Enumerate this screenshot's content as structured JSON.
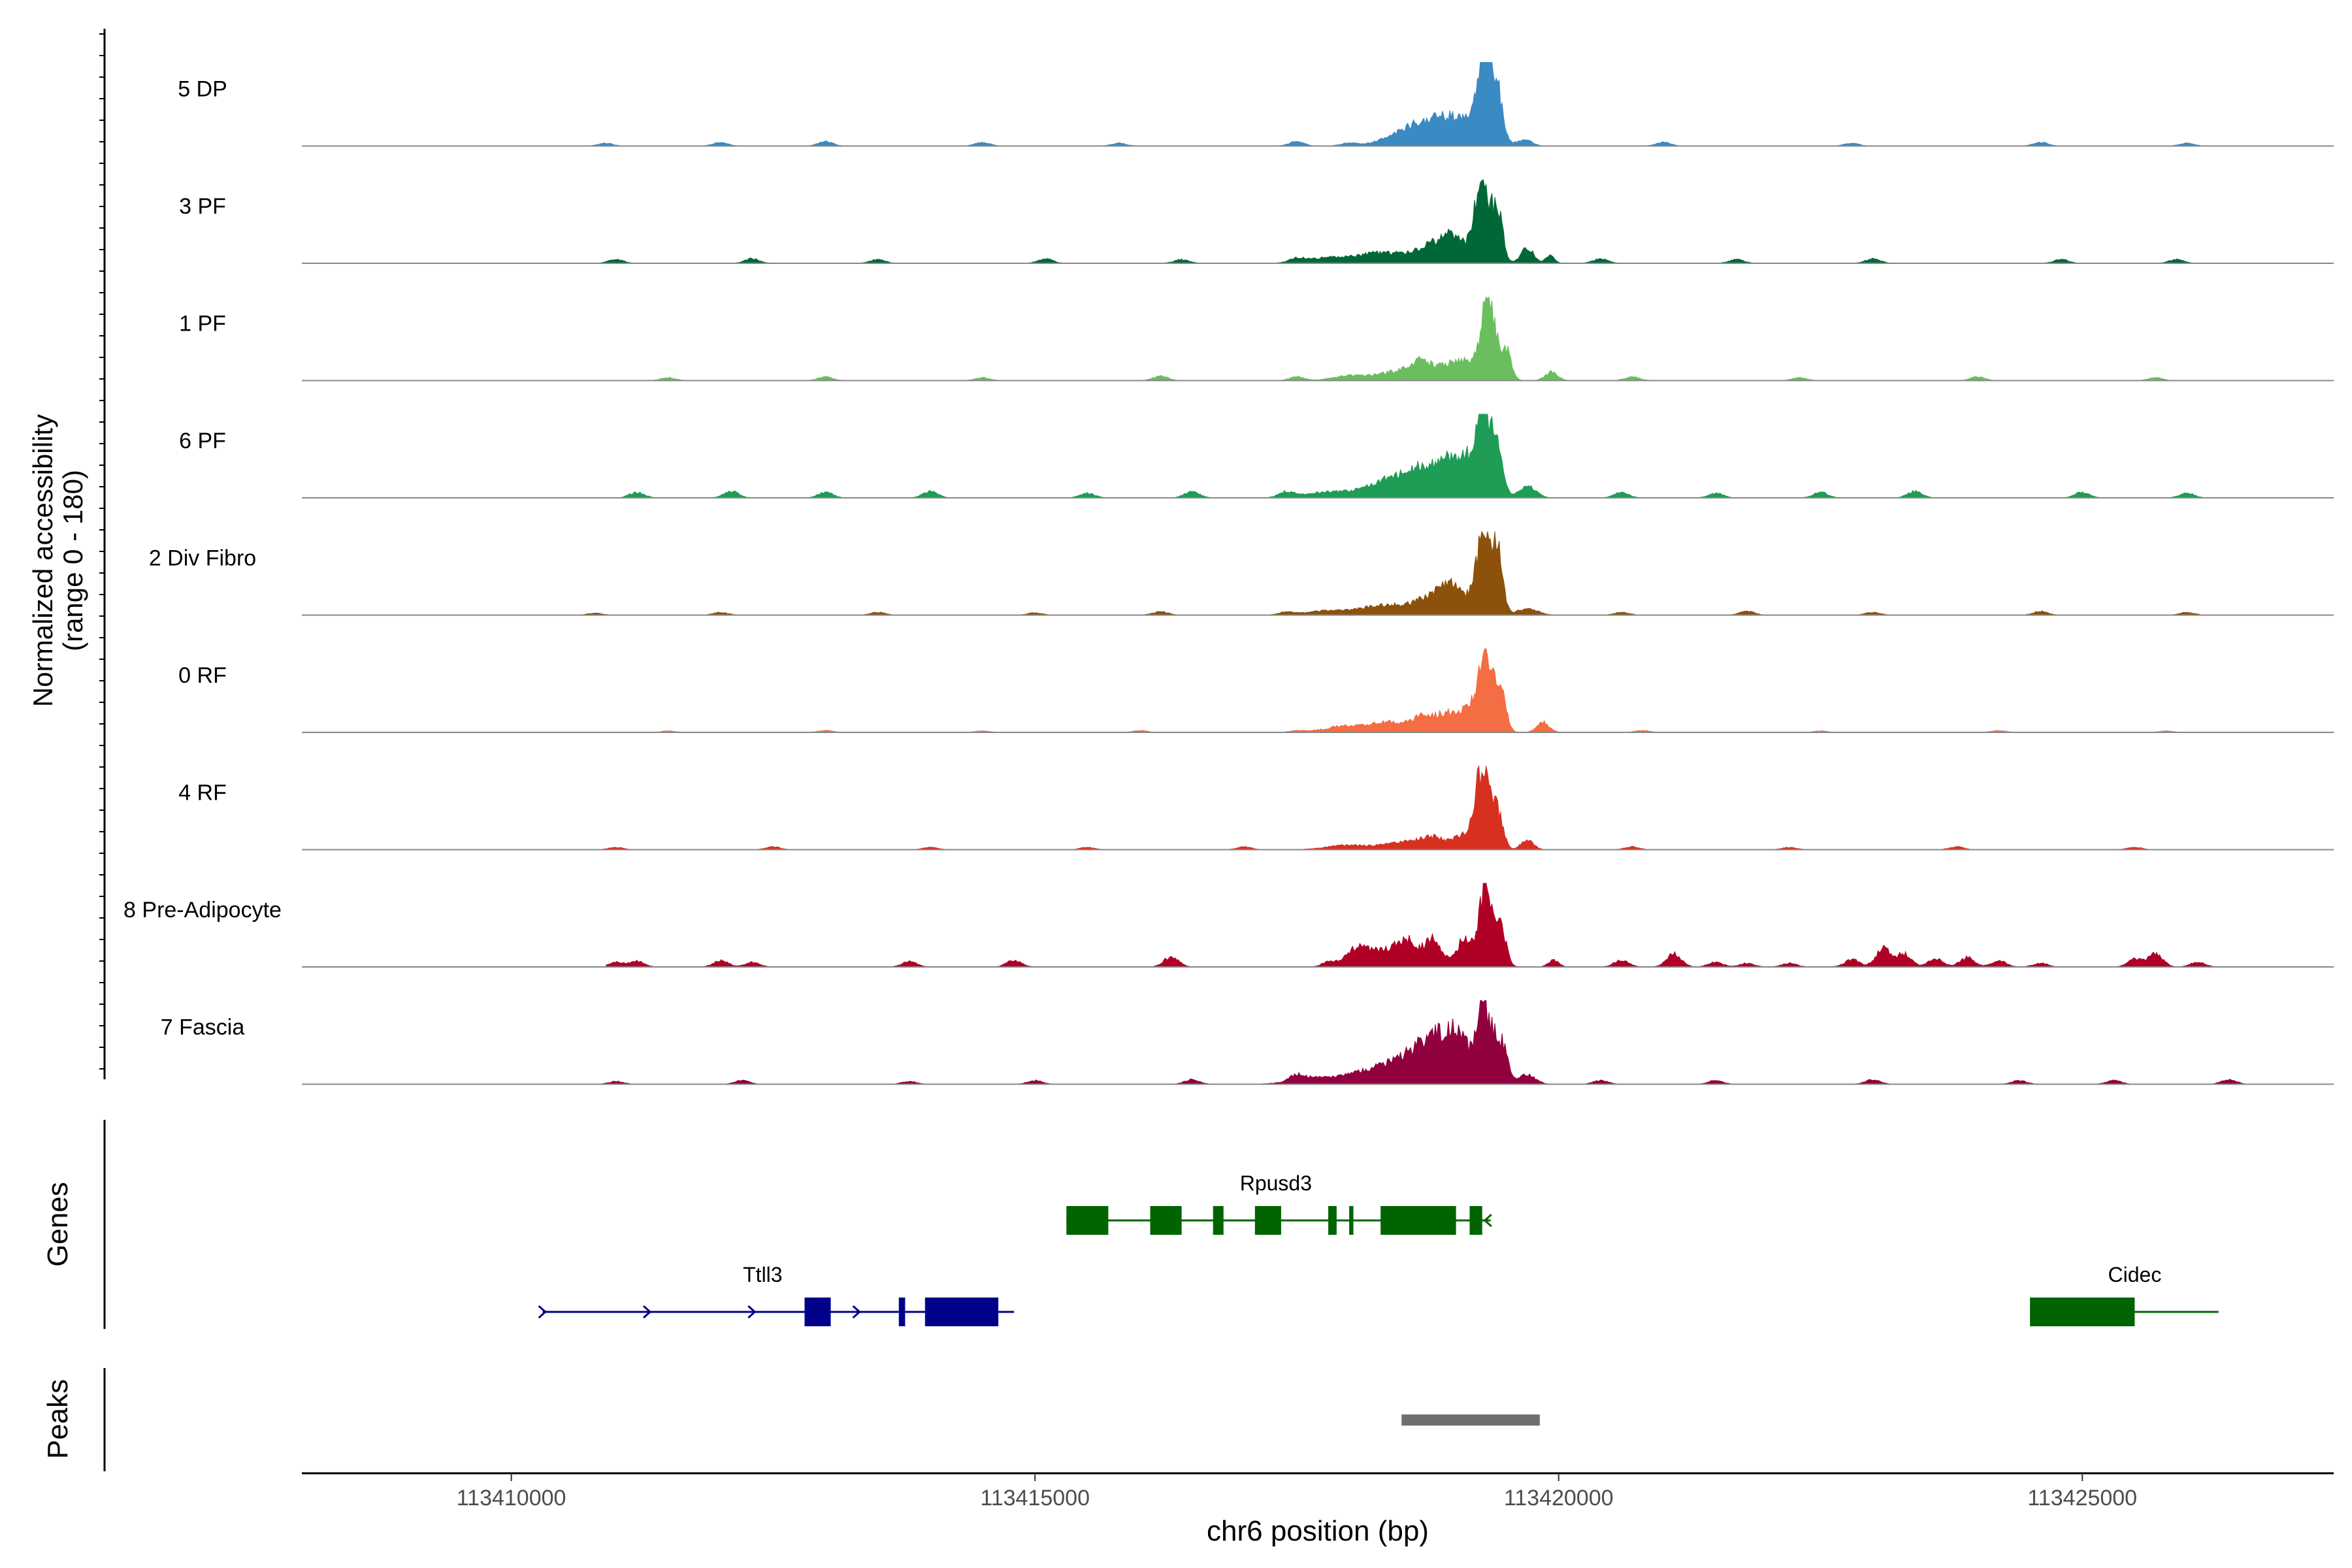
{
  "chart_data": {
    "type": "area",
    "subtype": "genome-coverage-track",
    "xlabel": "chr6 position (bp)",
    "ylabel_line1": "Normalized accessibility",
    "ylabel_line2": "(range 0 - 180)",
    "y_range": [
      0,
      180
    ],
    "x_range": [
      113408000,
      113427400
    ],
    "x_ticks": [
      {
        "value": 113410000,
        "label": "113410000"
      },
      {
        "value": 113415000,
        "label": "113415000"
      },
      {
        "value": 113420000,
        "label": "113420000"
      },
      {
        "value": 113425000,
        "label": "113425000"
      }
    ],
    "tracks": [
      {
        "name": "5 DP",
        "color": "#3a8ac3",
        "start": 113410300,
        "end": 113426600,
        "background": [
          [
            113410900,
            6
          ],
          [
            113412000,
            8
          ],
          [
            113413000,
            10
          ],
          [
            113414500,
            8
          ],
          [
            113415800,
            6
          ],
          [
            113417500,
            10
          ],
          [
            113419600,
            6
          ],
          [
            113421000,
            8
          ],
          [
            113422800,
            6
          ],
          [
            113424600,
            8
          ],
          [
            113426000,
            6
          ]
        ],
        "peaks": [
          [
            113418000,
            6,
            80
          ],
          [
            113418550,
            30,
            200
          ],
          [
            113418800,
            40,
            150
          ],
          [
            113419050,
            48,
            130
          ],
          [
            113419280,
            178,
            70
          ],
          [
            113419400,
            118,
            60
          ],
          [
            113419700,
            10,
            60
          ]
        ]
      },
      {
        "name": "3 PF",
        "color": "#006837",
        "start": 113410400,
        "end": 113426200,
        "background": [
          [
            113411000,
            8
          ],
          [
            113412300,
            10
          ],
          [
            113413500,
            8
          ],
          [
            113415100,
            10
          ],
          [
            113416400,
            8
          ],
          [
            113417500,
            8
          ],
          [
            113420400,
            10
          ],
          [
            113421700,
            8
          ],
          [
            113423000,
            10
          ],
          [
            113424800,
            8
          ],
          [
            113425900,
            8
          ]
        ],
        "peaks": [
          [
            113417800,
            12,
            200
          ],
          [
            113418300,
            22,
            200
          ],
          [
            113418800,
            35,
            180
          ],
          [
            113419000,
            40,
            120
          ],
          [
            113419270,
            180,
            70
          ],
          [
            113419420,
            100,
            50
          ],
          [
            113419700,
            32,
            60
          ],
          [
            113419920,
            18,
            40
          ]
        ]
      },
      {
        "name": "1 PF",
        "color": "#6abe5e",
        "start": 113410400,
        "end": 113426300,
        "background": [
          [
            113411500,
            6
          ],
          [
            113413000,
            8
          ],
          [
            113414500,
            6
          ],
          [
            113416200,
            10
          ],
          [
            113417500,
            8
          ],
          [
            113420700,
            8
          ],
          [
            113422300,
            6
          ],
          [
            113424000,
            8
          ],
          [
            113425700,
            6
          ]
        ],
        "peaks": [
          [
            113418000,
            10,
            160
          ],
          [
            113418500,
            22,
            200
          ],
          [
            113418700,
            30,
            90
          ],
          [
            113418900,
            22,
            80
          ],
          [
            113419100,
            42,
            110
          ],
          [
            113419330,
            172,
            70
          ],
          [
            113419500,
            60,
            50
          ],
          [
            113419930,
            18,
            60
          ]
        ]
      },
      {
        "name": "6 PF",
        "color": "#1f9c55",
        "start": 113410200,
        "end": 113426500,
        "background": [
          [
            113411200,
            12
          ],
          [
            113412100,
            14
          ],
          [
            113413000,
            12
          ],
          [
            113414000,
            14
          ],
          [
            113415500,
            10
          ],
          [
            113416500,
            14
          ],
          [
            113417400,
            12
          ],
          [
            113420600,
            12
          ],
          [
            113421500,
            10
          ],
          [
            113422500,
            12
          ],
          [
            113423400,
            14
          ],
          [
            113425000,
            12
          ],
          [
            113426000,
            10
          ]
        ],
        "peaks": [
          [
            113417800,
            12,
            220
          ],
          [
            113418300,
            22,
            200
          ],
          [
            113418600,
            40,
            200
          ],
          [
            113418900,
            50,
            200
          ],
          [
            113419080,
            55,
            120
          ],
          [
            113419280,
            178,
            70
          ],
          [
            113419420,
            105,
            50
          ],
          [
            113419700,
            25,
            80
          ]
        ]
      },
      {
        "name": "2 Div Fibro",
        "color": "#8c510a",
        "start": 113410200,
        "end": 113426500,
        "background": [
          [
            113410800,
            4
          ],
          [
            113412000,
            6
          ],
          [
            113413500,
            6
          ],
          [
            113415000,
            5
          ],
          [
            113416200,
            8
          ],
          [
            113417400,
            6
          ],
          [
            113420600,
            6
          ],
          [
            113421800,
            8
          ],
          [
            113423000,
            6
          ],
          [
            113424600,
            8
          ],
          [
            113426000,
            6
          ]
        ],
        "peaks": [
          [
            113417800,
            10,
            200
          ],
          [
            113418300,
            20,
            180
          ],
          [
            113418800,
            38,
            200
          ],
          [
            113419000,
            45,
            120
          ],
          [
            113419290,
            178,
            70
          ],
          [
            113419420,
            115,
            50
          ],
          [
            113419700,
            14,
            100
          ]
        ]
      },
      {
        "name": "0 RF",
        "color": "#f46d43",
        "start": 113410400,
        "end": 113426500,
        "background": [
          [
            113411500,
            3
          ],
          [
            113413000,
            4
          ],
          [
            113414500,
            3
          ],
          [
            113416000,
            4
          ],
          [
            113417500,
            3
          ],
          [
            113420800,
            4
          ],
          [
            113422500,
            3
          ],
          [
            113424200,
            4
          ],
          [
            113425800,
            3
          ]
        ],
        "peaks": [
          [
            113418000,
            14,
            220
          ],
          [
            113418400,
            20,
            150
          ],
          [
            113418700,
            32,
            100
          ],
          [
            113418900,
            26,
            90
          ],
          [
            113419100,
            45,
            120
          ],
          [
            113419300,
            175,
            70
          ],
          [
            113419450,
            80,
            50
          ],
          [
            113419850,
            22,
            60
          ]
        ]
      },
      {
        "name": "4 RF",
        "color": "#d7301f",
        "start": 113410300,
        "end": 113426500,
        "background": [
          [
            113411000,
            5
          ],
          [
            113412500,
            6
          ],
          [
            113414000,
            5
          ],
          [
            113415500,
            5
          ],
          [
            113417000,
            6
          ],
          [
            113420700,
            6
          ],
          [
            113422200,
            5
          ],
          [
            113423800,
            6
          ],
          [
            113425500,
            5
          ]
        ],
        "peaks": [
          [
            113418000,
            10,
            200
          ],
          [
            113418500,
            16,
            160
          ],
          [
            113418800,
            25,
            120
          ],
          [
            113419080,
            28,
            90
          ],
          [
            113419270,
            170,
            70
          ],
          [
            113419420,
            75,
            50
          ],
          [
            113419700,
            20,
            60
          ]
        ]
      },
      {
        "name": "8 Pre-Adipocyte",
        "color": "#b10026",
        "start": 113410900,
        "end": 113426300,
        "background": [
          [
            113411000,
            10
          ],
          [
            113411200,
            12
          ],
          [
            113412000,
            14
          ],
          [
            113412300,
            10
          ],
          [
            113413800,
            12
          ],
          [
            113414800,
            14
          ],
          [
            113416300,
            22
          ],
          [
            113418100,
            10
          ],
          [
            113420600,
            14
          ],
          [
            113421100,
            28
          ],
          [
            113421500,
            10
          ],
          [
            113421800,
            8
          ],
          [
            113422200,
            8
          ],
          [
            113422800,
            16
          ],
          [
            113423100,
            40
          ],
          [
            113423300,
            28
          ],
          [
            113423600,
            18
          ],
          [
            113423900,
            20
          ],
          [
            113424200,
            14
          ],
          [
            113424600,
            8
          ],
          [
            113425500,
            16
          ],
          [
            113425700,
            28
          ],
          [
            113426100,
            10
          ]
        ],
        "peaks": [
          [
            113417800,
            10,
            60
          ],
          [
            113418100,
            35,
            130
          ],
          [
            113418350,
            30,
            100
          ],
          [
            113418550,
            55,
            90
          ],
          [
            113418800,
            58,
            90
          ],
          [
            113419100,
            60,
            70
          ],
          [
            113419300,
            175,
            60
          ],
          [
            113419450,
            80,
            50
          ],
          [
            113419950,
            14,
            50
          ]
        ]
      },
      {
        "name": "7 Fascia",
        "color": "#91003f",
        "start": 113410300,
        "end": 113426600,
        "background": [
          [
            113411000,
            6
          ],
          [
            113412200,
            8
          ],
          [
            113413800,
            6
          ],
          [
            113415000,
            8
          ],
          [
            113416500,
            10
          ],
          [
            113417500,
            12
          ],
          [
            113420400,
            8
          ],
          [
            113421500,
            8
          ],
          [
            113423000,
            10
          ],
          [
            113424400,
            8
          ],
          [
            113425300,
            8
          ],
          [
            113426400,
            10
          ]
        ],
        "peaks": [
          [
            113417700,
            14,
            220
          ],
          [
            113418200,
            25,
            200
          ],
          [
            113418600,
            55,
            200
          ],
          [
            113418850,
            70,
            150
          ],
          [
            113419050,
            75,
            110
          ],
          [
            113419290,
            160,
            70
          ],
          [
            113419450,
            85,
            60
          ],
          [
            113419700,
            20,
            80
          ]
        ]
      }
    ],
    "genes": [
      {
        "name": "Rpusd3",
        "color": "#006400",
        "start": 113415300,
        "end": 113419350,
        "row": 1,
        "label_at": 113417300,
        "exons": [
          [
            113415300,
            113415700
          ],
          [
            113416100,
            113416400
          ],
          [
            113416700,
            113416800
          ],
          [
            113417100,
            113417350
          ],
          [
            113417800,
            113417880
          ],
          [
            113418000,
            113418040
          ],
          [
            113418300,
            113419020
          ],
          [
            113419150,
            113419270
          ]
        ]
      },
      {
        "name": "Ttll3",
        "color": "#00008b",
        "start": 113410300,
        "end": 113414800,
        "row": 2,
        "label_at": 113412400,
        "exons": [
          [
            113412800,
            113413050
          ],
          [
            113413700,
            113413760
          ],
          [
            113413950,
            113414650
          ]
        ]
      },
      {
        "name": "Cidec",
        "color": "#006400",
        "start": 113424500,
        "end": 113426300,
        "row": 2,
        "label_at": 113425500,
        "exons": [
          [
            113424500,
            113425500
          ]
        ]
      }
    ],
    "genes_label": "Genes",
    "peaks_label": "Peaks",
    "peak_regions": [
      [
        113418500,
        113419820
      ]
    ]
  }
}
